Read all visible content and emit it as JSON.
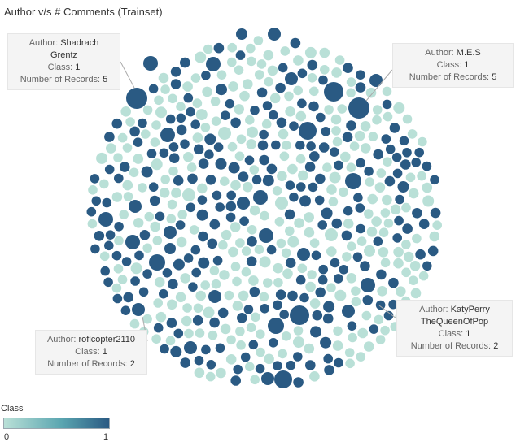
{
  "chart_data": {
    "type": "packed-bubble",
    "title": "Author v/s # Comments (Trainset)",
    "color_field": "Class",
    "size_field": "Number of Records",
    "colors": {
      "class_0": "#b9e0d7",
      "class_1": "#2a5a83"
    },
    "legend": {
      "title": "Class",
      "min_label": "0",
      "max_label": "1",
      "placement": "bottom-left"
    },
    "labels": {
      "author": "Author:",
      "class": "Class:",
      "records": "Number of Records:"
    },
    "highlighted_authors": [
      {
        "author_line1": "Shadrach",
        "author_line2": "Grentz",
        "class": "1",
        "records": "5"
      },
      {
        "author_line1": "M.E.S",
        "author_line2": "",
        "class": "1",
        "records": "5"
      },
      {
        "author_line1": "roflcopter2110",
        "author_line2": "",
        "class": "1",
        "records": "2"
      },
      {
        "author_line1": "KatyPerry",
        "author_line2": "TheQueenOfPop",
        "class": "1",
        "records": "2"
      }
    ]
  }
}
